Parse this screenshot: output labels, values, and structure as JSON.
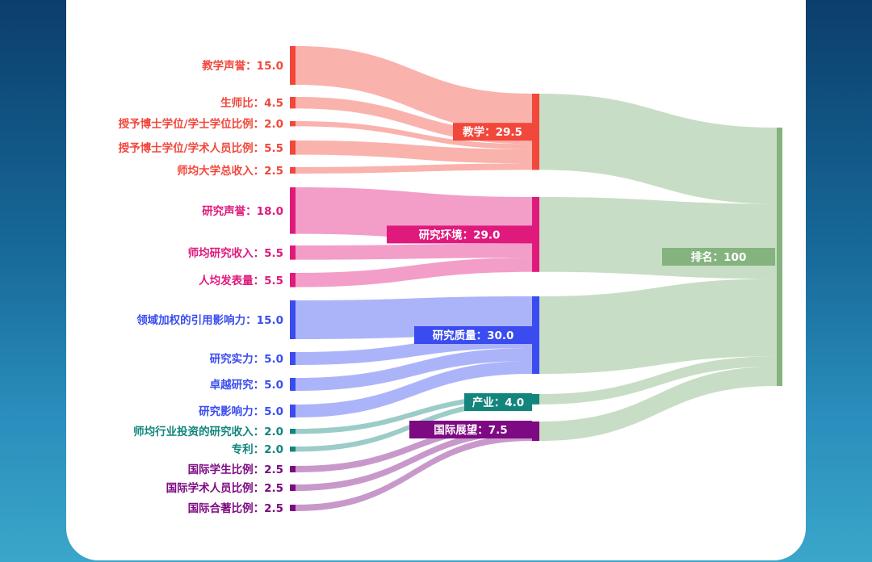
{
  "sankey": {
    "sources": [
      {
        "label": "教学声誉：15.0",
        "value": 15.0,
        "color": "#f2473b",
        "target": "teaching"
      },
      {
        "label": "生师比：4.5",
        "value": 4.5,
        "color": "#f2473b",
        "target": "teaching"
      },
      {
        "label": "授予博士学位/学士学位比例：2.0",
        "value": 2.0,
        "color": "#f2473b",
        "target": "teaching"
      },
      {
        "label": "授予博士学位/学术人员比例：5.5",
        "value": 5.5,
        "color": "#f2473b",
        "target": "teaching"
      },
      {
        "label": "师均大学总收入：2.5",
        "value": 2.5,
        "color": "#f2473b",
        "target": "teaching"
      },
      {
        "label": "研究声誉：18.0",
        "value": 18.0,
        "color": "#e0197d",
        "target": "research_env"
      },
      {
        "label": "师均研究收入：5.5",
        "value": 5.5,
        "color": "#e0197d",
        "target": "research_env"
      },
      {
        "label": "人均发表量：5.5",
        "value": 5.5,
        "color": "#e0197d",
        "target": "research_env"
      },
      {
        "label": "领域加权的引用影响力：15.0",
        "value": 15.0,
        "color": "#3a4cf0",
        "target": "research_quality"
      },
      {
        "label": "研究实力：5.0",
        "value": 5.0,
        "color": "#3a4cf0",
        "target": "research_quality"
      },
      {
        "label": "卓越研究：5.0",
        "value": 5.0,
        "color": "#3a4cf0",
        "target": "research_quality"
      },
      {
        "label": "研究影响力：5.0",
        "value": 5.0,
        "color": "#3a4cf0",
        "target": "research_quality"
      },
      {
        "label": "师均行业投资的研究收入：2.0",
        "value": 2.0,
        "color": "#13857d",
        "target": "industry"
      },
      {
        "label": "专利：2.0",
        "value": 2.0,
        "color": "#13857d",
        "target": "industry"
      },
      {
        "label": "国际学生比例：2.5",
        "value": 2.5,
        "color": "#7d0a82",
        "target": "intl"
      },
      {
        "label": "国际学术人员比例：2.5",
        "value": 2.5,
        "color": "#7d0a82",
        "target": "intl"
      },
      {
        "label": "国际合著比例：2.5",
        "value": 2.5,
        "color": "#7d0a82",
        "target": "intl"
      }
    ],
    "middles": [
      {
        "id": "teaching",
        "label": "教学：29.5",
        "value": 29.5,
        "color": "#f2473b"
      },
      {
        "id": "research_env",
        "label": "研究环境：29.0",
        "value": 29.0,
        "color": "#e0197d"
      },
      {
        "id": "research_quality",
        "label": "研究质量：30.0",
        "value": 30.0,
        "color": "#3a4cf0"
      },
      {
        "id": "industry",
        "label": "产业：4.0",
        "value": 4.0,
        "color": "#13857d"
      },
      {
        "id": "intl",
        "label": "国际展望：7.5",
        "value": 7.5,
        "color": "#7d0a82"
      }
    ],
    "final": {
      "label": "排名：100",
      "value": 100,
      "color": "#85b37f"
    }
  }
}
